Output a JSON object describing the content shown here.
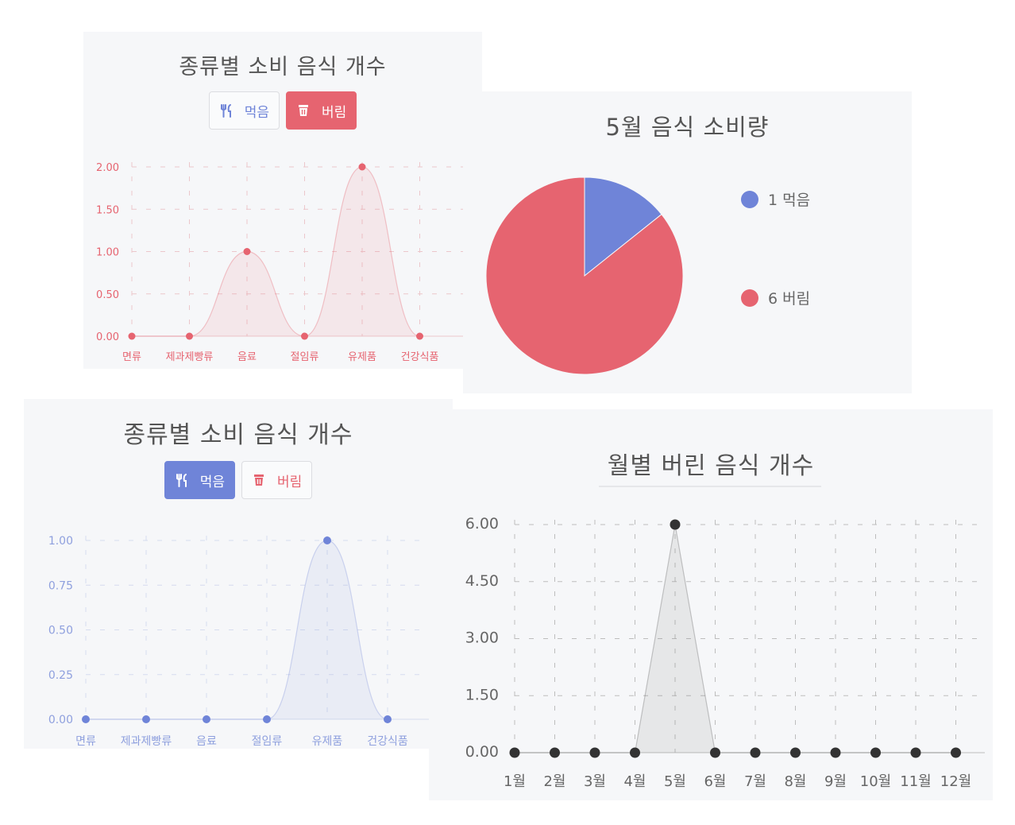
{
  "panels": {
    "p1": {
      "title": "종류별 소비 음식 개수",
      "eat_label": "먹음",
      "waste_label": "버림",
      "active": "waste"
    },
    "p2": {
      "title": "5월 음식 소비량"
    },
    "p3": {
      "title": "종류별 소비 음식 개수",
      "eat_label": "먹음",
      "waste_label": "버림",
      "active": "eat"
    },
    "p4": {
      "title": "월별 버린 음식 개수"
    }
  },
  "icons": {
    "eat": "fork-knife-icon",
    "waste": "trash-icon"
  },
  "colors": {
    "eat": "#6f84d8",
    "waste": "#e66470",
    "monthly": "#333333"
  },
  "chart_data": [
    {
      "type": "area",
      "title": "종류별 소비 음식 개수",
      "categories": [
        "면류",
        "제과제빵류",
        "음료",
        "절임류",
        "유제품",
        "건강식품"
      ],
      "series": [
        {
          "name": "버림",
          "values": [
            0,
            0,
            1,
            0,
            2,
            0
          ]
        }
      ],
      "yticks": [
        "0.00",
        "0.50",
        "1.00",
        "1.50",
        "2.00"
      ],
      "ylim": [
        0,
        2
      ],
      "grid": true
    },
    {
      "type": "pie",
      "title": "5월 음식 소비량",
      "slices": [
        {
          "label": "1 먹음",
          "value": 1,
          "color": "#6f84d8"
        },
        {
          "label": "6 버림",
          "value": 6,
          "color": "#e66470"
        }
      ],
      "legend": "right"
    },
    {
      "type": "area",
      "title": "종류별 소비 음식 개수",
      "categories": [
        "면류",
        "제과제빵류",
        "음료",
        "절임류",
        "유제품",
        "건강식품"
      ],
      "series": [
        {
          "name": "먹음",
          "values": [
            0,
            0,
            0,
            0,
            1,
            0
          ]
        }
      ],
      "yticks": [
        "0.00",
        "0.25",
        "0.50",
        "0.75",
        "1.00"
      ],
      "ylim": [
        0,
        1
      ],
      "grid": true
    },
    {
      "type": "area",
      "title": "월별 버린 음식 개수",
      "categories": [
        "1월",
        "2월",
        "3월",
        "4월",
        "5월",
        "6월",
        "7월",
        "8월",
        "9월",
        "10월",
        "11월",
        "12월"
      ],
      "series": [
        {
          "values": [
            0,
            0,
            0,
            0,
            6,
            0,
            0,
            0,
            0,
            0,
            0,
            0
          ]
        }
      ],
      "yticks": [
        "0.00",
        "1.50",
        "3.00",
        "4.50",
        "6.00"
      ],
      "ylim": [
        0,
        6
      ],
      "grid": true
    }
  ]
}
